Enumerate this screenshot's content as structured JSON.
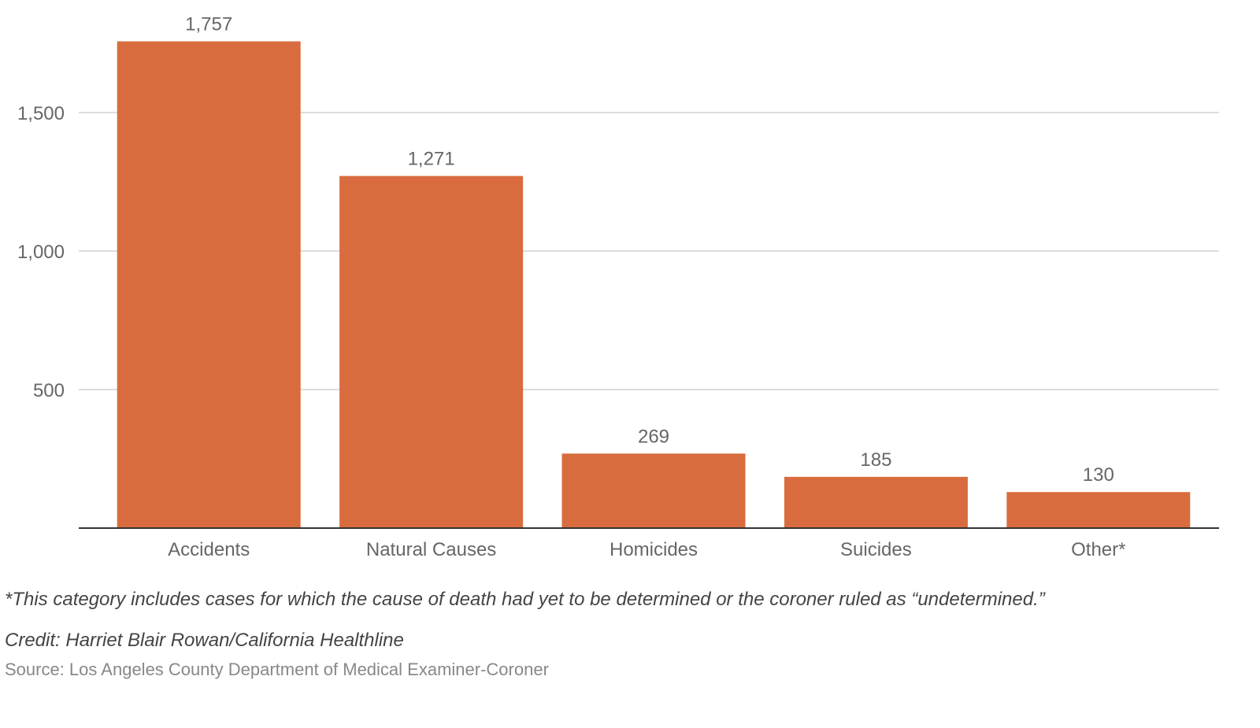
{
  "chart_data": {
    "type": "bar",
    "categories": [
      "Accidents",
      "Natural Causes",
      "Homicides",
      "Suicides",
      "Other*"
    ],
    "values": [
      1757,
      1271,
      269,
      185,
      130
    ],
    "data_labels": [
      "1,757",
      "1,271",
      "269",
      "185",
      "130"
    ],
    "y_ticks": [
      500,
      1000,
      1500
    ],
    "y_tick_labels": [
      "500",
      "1,000",
      "1,500"
    ],
    "ylim": [
      0,
      1800
    ],
    "grid": true,
    "legend": false,
    "bar_color": "#D86C3E",
    "gridline_color": "#DDDDDD",
    "axis_color": "#333333"
  },
  "footnote": "*This category includes cases for which the cause of death had yet to be determined or the coroner ruled as “undetermined.”",
  "credit": "Credit: Harriet Blair Rowan/California Healthline",
  "source": "Source: Los Angeles County Department of Medical Examiner-Coroner"
}
